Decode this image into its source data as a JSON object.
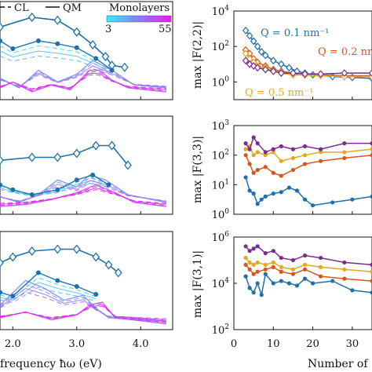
{
  "legend": {
    "cl_label": "CL",
    "qm_label": "QM",
    "cb_title": "Monolayers",
    "cb_min": "3",
    "cb_max": "55"
  },
  "x_label_left": "frequency ħω (eV)",
  "x_label_right": "Number of",
  "colors": {
    "axis": "#111111",
    "blue": "#1f6fa8",
    "orange": "#d4571d",
    "yellow": "#e2a81f",
    "purple": "#7b2c8c",
    "cyan": "#2fe0f0",
    "magenta": "#ee18ee"
  },
  "chart_data": [
    {
      "type": "line",
      "panel": "top-left",
      "title": "",
      "xlabel": "",
      "ylabel": "",
      "xlim": [
        1.8,
        4.5
      ],
      "x_ticks": [
        "2.0",
        "3.0",
        "4.0"
      ],
      "x_tick_values": [
        2.0,
        3.0,
        4.0
      ],
      "show_tick_labels": false,
      "series": [
        {
          "name": "QM",
          "x": [
            1.8,
            2.3,
            2.7,
            3.0,
            3.25,
            3.45,
            3.55,
            3.75
          ],
          "values": [
            0.74,
            0.84,
            0.81,
            0.69,
            0.56,
            0.44,
            0.35,
            0.33
          ]
        },
        {
          "x": [
            1.8,
            2.0,
            2.4,
            2.7,
            3.0,
            3.3,
            3.55
          ],
          "values": [
            0.6,
            0.52,
            0.6,
            0.57,
            0.53,
            0.42,
            0.3
          ]
        },
        {
          "x": [
            1.8,
            2.1,
            2.4,
            2.7,
            3.0,
            3.25,
            3.55,
            3.9,
            4.4
          ],
          "values": [
            0.22,
            0.12,
            0.3,
            0.18,
            0.26,
            0.4,
            0.3,
            0.15,
            0.12
          ]
        },
        {
          "x": [
            1.8,
            2.0,
            2.3,
            2.6,
            2.9,
            3.2,
            3.35,
            3.55,
            3.8,
            4.4
          ],
          "values": [
            0.12,
            0.18,
            0.08,
            0.15,
            0.1,
            0.3,
            0.3,
            0.2,
            0.12,
            0.08
          ]
        }
      ]
    },
    {
      "type": "line",
      "panel": "middle-left",
      "title": "",
      "xlabel": "",
      "ylabel": "",
      "xlim": [
        1.8,
        4.5
      ],
      "x_ticks": [
        "2.0",
        "3.0",
        "4.0"
      ],
      "x_tick_values": [
        2.0,
        3.0,
        4.0
      ],
      "show_tick_labels": false,
      "series": [
        {
          "name": "QM",
          "x": [
            1.8,
            2.3,
            2.7,
            3.0,
            3.3,
            3.55,
            3.8
          ],
          "values": [
            0.55,
            0.58,
            0.58,
            0.62,
            0.7,
            0.7,
            0.5
          ]
        },
        {
          "x": [
            1.8,
            2.0,
            2.3,
            2.7,
            3.0,
            3.25,
            3.5
          ],
          "values": [
            0.3,
            0.25,
            0.2,
            0.25,
            0.35,
            0.4,
            0.3
          ]
        },
        {
          "x": [
            1.8,
            2.1,
            2.4,
            2.7,
            3.0,
            3.2,
            3.45,
            3.8,
            4.4
          ],
          "values": [
            0.18,
            0.12,
            0.2,
            0.35,
            0.28,
            0.4,
            0.35,
            0.2,
            0.12
          ]
        },
        {
          "x": [
            1.8,
            2.2,
            2.6,
            3.0,
            3.3,
            3.6,
            3.9,
            4.4
          ],
          "values": [
            0.08,
            0.1,
            0.15,
            0.22,
            0.3,
            0.22,
            0.12,
            0.08
          ]
        }
      ]
    },
    {
      "type": "line",
      "panel": "bottom-left",
      "title": "",
      "xlabel": "frequency ħω (eV)",
      "ylabel": "",
      "xlim": [
        1.8,
        4.5
      ],
      "x_ticks": [
        "2.0",
        "3.0",
        "4.0"
      ],
      "x_tick_values": [
        2.0,
        3.0,
        4.0
      ],
      "show_tick_labels": true,
      "series": [
        {
          "name": "QM",
          "x": [
            1.8,
            2.0,
            2.3,
            2.7,
            3.0,
            3.3,
            3.5,
            3.65
          ],
          "values": [
            0.68,
            0.74,
            0.8,
            0.82,
            0.82,
            0.74,
            0.66,
            0.58
          ]
        },
        {
          "x": [
            1.8,
            2.0,
            2.4,
            2.7,
            3.0,
            3.3
          ],
          "values": [
            0.38,
            0.34,
            0.58,
            0.5,
            0.44,
            0.36
          ]
        },
        {
          "x": [
            1.8,
            2.2,
            2.5,
            2.8,
            3.1,
            3.3,
            3.5,
            4.4
          ],
          "values": [
            0.25,
            0.5,
            0.42,
            0.3,
            0.35,
            0.22,
            0.12,
            0.08
          ]
        },
        {
          "x": [
            1.8,
            2.2,
            2.6,
            3.0,
            3.2,
            3.4,
            3.6,
            4.4
          ],
          "values": [
            0.12,
            0.18,
            0.1,
            0.15,
            0.25,
            0.28,
            0.12,
            0.06
          ]
        }
      ]
    },
    {
      "type": "line",
      "panel": "top-right",
      "title": "",
      "xlabel": "",
      "ylabel": "max |F(2,2)|",
      "xlim": [
        0,
        35
      ],
      "y_log": true,
      "ylim_exp": [
        -1,
        4
      ],
      "y_ticks": [
        0,
        2,
        4
      ],
      "x_ticks": [
        "0",
        "10",
        "20",
        "30"
      ],
      "x_tick_values": [
        0,
        10,
        20,
        30
      ],
      "show_tick_labels": false,
      "annotations": [
        "Q = 0.1 nm⁻¹",
        "Q = 0.2 nm",
        "Q = 0.5 nm⁻¹"
      ],
      "series": [
        {
          "name": "Q = 0.1 nm⁻¹",
          "color": "blue",
          "x": [
            3,
            4,
            5,
            6,
            7,
            8,
            10,
            12,
            14,
            16,
            18,
            20,
            25,
            30,
            35
          ],
          "values": [
            2.9,
            2.6,
            2.3,
            2.0,
            1.7,
            1.5,
            1.2,
            1.0,
            0.8,
            0.6,
            0.5,
            0.4,
            0.3,
            0.25,
            0.2
          ]
        },
        {
          "color": "orange",
          "x": [
            3,
            4,
            5,
            6,
            8,
            10,
            12,
            15,
            18,
            22,
            28,
            35
          ],
          "values": [
            1.8,
            1.6,
            1.3,
            1.1,
            0.9,
            0.7,
            0.6,
            0.5,
            0.45,
            0.4,
            0.35,
            0.35
          ]
        },
        {
          "color": "yellow",
          "x": [
            3,
            4,
            5,
            6,
            8,
            10,
            12,
            15,
            18,
            22,
            28,
            35
          ],
          "values": [
            1.6,
            1.3,
            1.1,
            0.9,
            0.8,
            0.6,
            0.5,
            0.4,
            0.38,
            0.35,
            0.3,
            0.3
          ]
        },
        {
          "color": "purple",
          "x": [
            3,
            4,
            5,
            6,
            8,
            10,
            12,
            15,
            18,
            22,
            28,
            35
          ],
          "values": [
            1.2,
            1.0,
            0.9,
            0.8,
            0.7,
            0.6,
            0.5,
            0.5,
            0.45,
            0.45,
            0.5,
            0.5
          ]
        }
      ]
    },
    {
      "type": "line",
      "panel": "middle-right",
      "title": "",
      "xlabel": "",
      "ylabel": "max |F(3,3)|",
      "xlim": [
        0,
        35
      ],
      "y_log": true,
      "ylim_exp": [
        0,
        3
      ],
      "y_ticks": [
        0,
        1,
        2,
        3
      ],
      "x_ticks": [
        "0",
        "10",
        "20",
        "30"
      ],
      "x_tick_values": [
        0,
        10,
        20,
        30
      ],
      "show_tick_labels": false,
      "series": [
        {
          "color": "blue",
          "x": [
            3,
            4,
            5,
            6,
            7,
            8,
            10,
            12,
            14,
            16,
            18,
            20,
            25,
            30,
            35
          ],
          "values": [
            1.25,
            0.8,
            0.7,
            0.35,
            0.5,
            0.6,
            0.7,
            0.75,
            0.9,
            0.8,
            0.5,
            0.3,
            0.4,
            0.5,
            0.6
          ]
        },
        {
          "color": "orange",
          "x": [
            3,
            4,
            5,
            6,
            8,
            10,
            12,
            15,
            18,
            22,
            28,
            35
          ],
          "values": [
            2.0,
            1.7,
            1.4,
            1.5,
            1.6,
            1.4,
            1.3,
            1.5,
            1.7,
            1.8,
            1.9,
            2.0
          ]
        },
        {
          "color": "yellow",
          "x": [
            3,
            4,
            5,
            6,
            8,
            10,
            12,
            15,
            18,
            22,
            28,
            35
          ],
          "values": [
            2.2,
            2.3,
            2.0,
            2.1,
            2.0,
            2.1,
            1.8,
            1.9,
            2.0,
            2.1,
            2.1,
            2.2
          ]
        },
        {
          "color": "purple",
          "x": [
            3,
            4,
            5,
            6,
            8,
            10,
            12,
            15,
            18,
            22,
            28,
            35
          ],
          "values": [
            2.4,
            2.2,
            2.6,
            2.4,
            2.1,
            2.2,
            2.3,
            2.2,
            2.3,
            2.2,
            2.4,
            2.4
          ]
        }
      ]
    },
    {
      "type": "line",
      "panel": "bottom-right",
      "title": "",
      "xlabel": "Number of",
      "ylabel": "max |F(3,1)|",
      "xlim": [
        0,
        35
      ],
      "y_log": true,
      "ylim_exp": [
        2,
        6
      ],
      "y_ticks": [
        2,
        4,
        6
      ],
      "x_ticks": [
        "0",
        "10",
        "20",
        "30"
      ],
      "x_tick_values": [
        0,
        10,
        20,
        30
      ],
      "show_tick_labels": true,
      "series": [
        {
          "color": "blue",
          "x": [
            3,
            4,
            5,
            6,
            7,
            8,
            10,
            12,
            14,
            16,
            18,
            20,
            25,
            30,
            35
          ],
          "values": [
            4.3,
            3.8,
            3.6,
            4.0,
            3.5,
            4.4,
            4.0,
            4.1,
            4.0,
            3.9,
            4.2,
            4.0,
            4.1,
            3.7,
            3.6
          ]
        },
        {
          "color": "orange",
          "x": [
            3,
            4,
            5,
            6,
            8,
            10,
            12,
            15,
            18,
            22,
            28,
            35
          ],
          "values": [
            4.8,
            4.6,
            4.4,
            4.5,
            4.6,
            4.7,
            4.5,
            4.4,
            4.6,
            4.3,
            4.2,
            4.1
          ]
        },
        {
          "color": "yellow",
          "x": [
            3,
            4,
            5,
            6,
            8,
            10,
            12,
            15,
            18,
            22,
            28,
            35
          ],
          "values": [
            5.1,
            4.9,
            4.8,
            4.9,
            4.8,
            4.9,
            4.7,
            4.6,
            4.8,
            4.7,
            4.6,
            4.5
          ]
        },
        {
          "color": "purple",
          "x": [
            3,
            4,
            5,
            6,
            8,
            10,
            12,
            15,
            18,
            22,
            28,
            35
          ],
          "values": [
            5.6,
            5.4,
            5.5,
            5.6,
            5.3,
            5.4,
            5.1,
            5.0,
            5.2,
            5.1,
            4.9,
            4.8
          ]
        }
      ]
    }
  ]
}
